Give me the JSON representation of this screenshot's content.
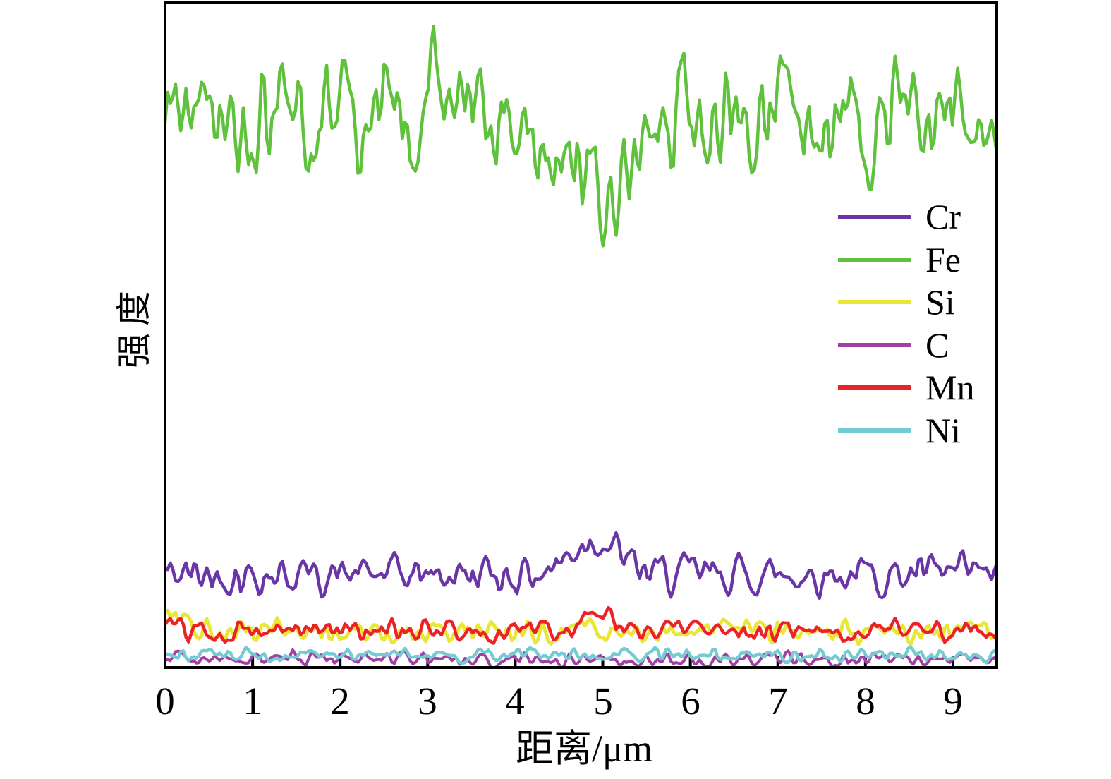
{
  "figure": {
    "background_color": "#ffffff",
    "axis_color": "#000000"
  },
  "chart_data": {
    "type": "line",
    "title": "",
    "xlabel": "距离/μm",
    "ylabel": "强度",
    "x_range": [
      0,
      9.5
    ],
    "x_ticks": [
      0,
      1,
      2,
      3,
      4,
      5,
      6,
      7,
      8,
      9
    ],
    "y_axis_note": "no tick labels shown; arbitrary intensity units 0-100",
    "grid": "off",
    "legend_position": "inside-right-upper",
    "noise_seed": 42,
    "points_per_series": 320,
    "series": [
      {
        "name": "Cr",
        "color": "#6A35A5",
        "line_width": 4.5,
        "baseline": 14.0,
        "noise_amp": 2.2,
        "features": [
          {
            "type": "bump",
            "x": 4.9,
            "sigma": 0.26,
            "height": 5.5
          }
        ]
      },
      {
        "name": "Fe",
        "color": "#5FC13C",
        "line_width": 4.5,
        "baseline": 82.5,
        "noise_amp": 6.2,
        "features": [
          {
            "type": "dip",
            "x": 4.95,
            "sigma": 0.38,
            "depth": 11
          },
          {
            "type": "spike",
            "x": 3.05,
            "height": 15
          },
          {
            "type": "spike",
            "x": 5.92,
            "height": 8
          },
          {
            "type": "spike",
            "x": 8.35,
            "height": 9
          }
        ]
      },
      {
        "name": "Si",
        "color": "#E9E636",
        "line_width": 5,
        "baseline": 5.3,
        "noise_amp": 1.35,
        "features": [
          {
            "type": "edge_decay",
            "width": 0.18,
            "height": 4
          }
        ]
      },
      {
        "name": "C",
        "color": "#A23FA5",
        "line_width": 4,
        "baseline": 1.3,
        "noise_amp": 0.8,
        "features": []
      },
      {
        "name": "Mn",
        "color": "#EC2226",
        "line_width": 4.5,
        "baseline": 5.6,
        "noise_amp": 1.25,
        "features": [
          {
            "type": "bump",
            "x": 4.9,
            "sigma": 0.15,
            "height": 2.6
          },
          {
            "type": "edge_decay",
            "width": 0.12,
            "height": 2.5
          }
        ]
      },
      {
        "name": "Ni",
        "color": "#74CBD2",
        "line_width": 4.5,
        "baseline": 1.9,
        "noise_amp": 0.75,
        "features": []
      }
    ]
  }
}
